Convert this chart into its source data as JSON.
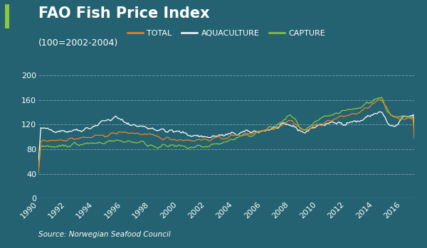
{
  "title": "FAO Fish Price Index",
  "subtitle": "(100=2002-2004)",
  "source": "Source: Norwegian Seafood Council",
  "background_color": "#246272",
  "plot_bg_color": "#246272",
  "line_color_total": "#f5821f",
  "line_color_aquaculture": "#ffffff",
  "line_color_capture": "#8dc63f",
  "accent_bar_color": "#8dc63f",
  "ylim": [
    0,
    210
  ],
  "yticks": [
    0,
    40,
    80,
    120,
    160,
    200
  ],
  "xlim_start": 1990,
  "xlim_end": 2016.9,
  "xticks": [
    1990,
    1992,
    1994,
    1996,
    1998,
    2000,
    2002,
    2004,
    2006,
    2008,
    2010,
    2012,
    2014,
    2016
  ],
  "grid_color": "#ffffff",
  "grid_alpha": 0.35,
  "title_fontsize": 15,
  "subtitle_fontsize": 9,
  "tick_fontsize": 8,
  "legend_fontsize": 8,
  "source_fontsize": 7.5
}
